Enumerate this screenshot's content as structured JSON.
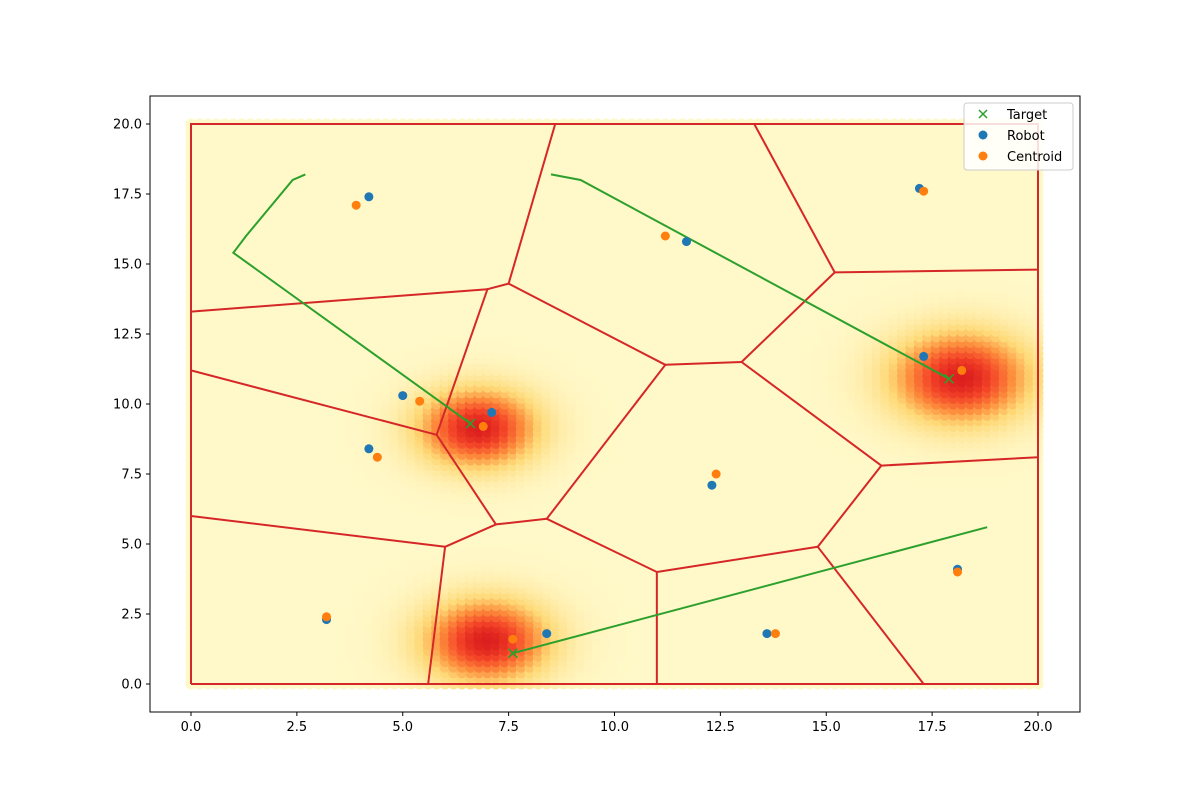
{
  "chart_data": {
    "type": "scatter",
    "xlim": [
      -1.0,
      21.0
    ],
    "ylim": [
      -0.8,
      21.0
    ],
    "x_ticks": [
      "0.0",
      "2.5",
      "5.0",
      "7.5",
      "10.0",
      "12.5",
      "15.0",
      "17.5",
      "20.0"
    ],
    "y_ticks": [
      "0.0",
      "2.5",
      "5.0",
      "7.5",
      "10.0",
      "12.5",
      "15.0",
      "17.5",
      "20.0"
    ],
    "grid": false,
    "legend_position": "top-right",
    "density_background": {
      "extent": [
        0,
        20,
        0,
        20
      ],
      "colormap": "YlOrRd",
      "peaks": [
        {
          "x": 6.8,
          "y": 9.2,
          "sigma": 0.95,
          "weight": 1.0
        },
        {
          "x": 18.2,
          "y": 11.0,
          "sigma": 1.1,
          "weight": 1.0
        },
        {
          "x": 7.0,
          "y": 1.6,
          "sigma": 1.0,
          "weight": 1.0
        }
      ]
    },
    "series": [
      {
        "name": "Target",
        "marker": "x",
        "color": "#2ca02c",
        "points": [
          [
            6.6,
            9.3
          ],
          [
            17.9,
            10.9
          ],
          [
            7.6,
            1.1
          ]
        ]
      },
      {
        "name": "Robot",
        "marker": "o",
        "color": "#1f77b4",
        "points": [
          [
            4.2,
            17.4
          ],
          [
            11.7,
            15.8
          ],
          [
            17.2,
            17.7
          ],
          [
            17.3,
            11.7
          ],
          [
            5.0,
            10.3
          ],
          [
            7.1,
            9.7
          ],
          [
            4.2,
            8.4
          ],
          [
            12.3,
            7.1
          ],
          [
            3.2,
            2.3
          ],
          [
            8.4,
            1.8
          ],
          [
            13.6,
            1.8
          ],
          [
            18.1,
            4.1
          ]
        ]
      },
      {
        "name": "Centroid",
        "marker": "o",
        "color": "#ff7f0e",
        "points": [
          [
            3.9,
            17.1
          ],
          [
            11.2,
            16.0
          ],
          [
            17.3,
            17.6
          ],
          [
            18.2,
            11.2
          ],
          [
            5.4,
            10.1
          ],
          [
            6.9,
            9.2
          ],
          [
            4.4,
            8.1
          ],
          [
            12.4,
            7.5
          ],
          [
            3.2,
            2.4
          ],
          [
            7.6,
            1.6
          ],
          [
            13.8,
            1.8
          ],
          [
            18.1,
            4.0
          ]
        ]
      }
    ],
    "voronoi_edges": [
      [
        [
          0,
          13.3
        ],
        [
          7.0,
          14.1
        ]
      ],
      [
        [
          7.0,
          14.1
        ],
        [
          7.5,
          14.3
        ]
      ],
      [
        [
          7.5,
          14.3
        ],
        [
          8.6,
          20.0
        ]
      ],
      [
        [
          7.0,
          14.1
        ],
        [
          5.8,
          8.9
        ]
      ],
      [
        [
          7.5,
          14.3
        ],
        [
          11.2,
          11.4
        ]
      ],
      [
        [
          11.2,
          11.4
        ],
        [
          13.0,
          11.5
        ]
      ],
      [
        [
          13.0,
          11.5
        ],
        [
          15.2,
          14.7
        ]
      ],
      [
        [
          15.2,
          14.7
        ],
        [
          20.0,
          14.8
        ]
      ],
      [
        [
          15.2,
          14.7
        ],
        [
          13.3,
          20.0
        ]
      ],
      [
        [
          0,
          11.2
        ],
        [
          5.8,
          8.9
        ]
      ],
      [
        [
          5.8,
          8.9
        ],
        [
          7.2,
          5.7
        ]
      ],
      [
        [
          7.2,
          5.7
        ],
        [
          8.4,
          5.9
        ]
      ],
      [
        [
          8.4,
          5.9
        ],
        [
          11.2,
          11.4
        ]
      ],
      [
        [
          13.0,
          11.5
        ],
        [
          16.3,
          7.8
        ]
      ],
      [
        [
          16.3,
          7.8
        ],
        [
          20.0,
          8.1
        ]
      ],
      [
        [
          16.3,
          7.8
        ],
        [
          14.8,
          4.9
        ]
      ],
      [
        [
          14.8,
          4.9
        ],
        [
          11.0,
          4.0
        ]
      ],
      [
        [
          11.0,
          4.0
        ],
        [
          8.4,
          5.9
        ]
      ],
      [
        [
          0,
          6.0
        ],
        [
          6.0,
          4.9
        ]
      ],
      [
        [
          6.0,
          4.9
        ],
        [
          7.2,
          5.7
        ]
      ],
      [
        [
          6.0,
          4.9
        ],
        [
          5.6,
          0.0
        ]
      ],
      [
        [
          11.0,
          4.0
        ],
        [
          11.0,
          0.0
        ]
      ],
      [
        [
          14.8,
          4.9
        ],
        [
          17.3,
          0.0
        ]
      ]
    ],
    "domain_boundary": [
      [
        0,
        0
      ],
      [
        20,
        0
      ],
      [
        20,
        20
      ],
      [
        0,
        20
      ],
      [
        0,
        0
      ]
    ],
    "trajectories": [
      [
        [
          6.6,
          9.3
        ],
        [
          1.0,
          15.4
        ],
        [
          1.3,
          16.0
        ],
        [
          2.4,
          18.0
        ],
        [
          2.7,
          18.2
        ]
      ],
      [
        [
          17.9,
          10.9
        ],
        [
          9.2,
          18.0
        ],
        [
          8.5,
          18.2
        ]
      ],
      [
        [
          7.6,
          1.1
        ],
        [
          18.8,
          5.6
        ]
      ]
    ]
  }
}
